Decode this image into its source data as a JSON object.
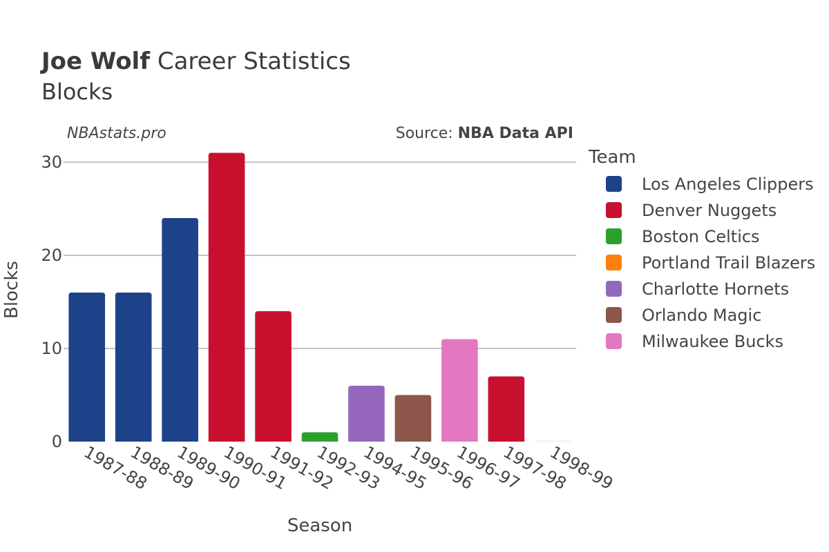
{
  "chart_data": {
    "type": "bar",
    "title_bold": "Joe Wolf",
    "title_rest": " Career Statistics",
    "subtitle": "Blocks",
    "credit_left": "NBAstats.pro",
    "source_prefix": "Source: ",
    "source_name": "NBA Data API",
    "xlabel": "Season",
    "ylabel": "Blocks",
    "ylim": [
      0,
      31
    ],
    "yticks": [
      0,
      10,
      20,
      30
    ],
    "grid": true,
    "legend_title": "Team",
    "legend_position": "right",
    "teams": [
      {
        "name": "Los Angeles Clippers",
        "color": "#1d428a"
      },
      {
        "name": "Denver Nuggets",
        "color": "#c8102e"
      },
      {
        "name": "Boston Celtics",
        "color": "#2ca02c"
      },
      {
        "name": "Portland Trail Blazers",
        "color": "#ff7f0e"
      },
      {
        "name": "Charlotte Hornets",
        "color": "#9467bd"
      },
      {
        "name": "Orlando Magic",
        "color": "#8c564b"
      },
      {
        "name": "Milwaukee Bucks",
        "color": "#e377c2"
      }
    ],
    "categories": [
      "1987-88",
      "1988-89",
      "1989-90",
      "1990-91",
      "1991-92",
      "1992-93",
      "1994-95",
      "1995-96",
      "1996-97",
      "1997-98",
      "1998-99"
    ],
    "values": [
      16,
      16,
      24,
      31,
      14,
      1,
      6,
      5,
      11,
      7,
      0
    ],
    "bar_teams": [
      "Los Angeles Clippers",
      "Los Angeles Clippers",
      "Los Angeles Clippers",
      "Denver Nuggets",
      "Denver Nuggets",
      "Boston Celtics",
      "Charlotte Hornets",
      "Orlando Magic",
      "Milwaukee Bucks",
      "Denver Nuggets",
      "Portland Trail Blazers"
    ]
  }
}
